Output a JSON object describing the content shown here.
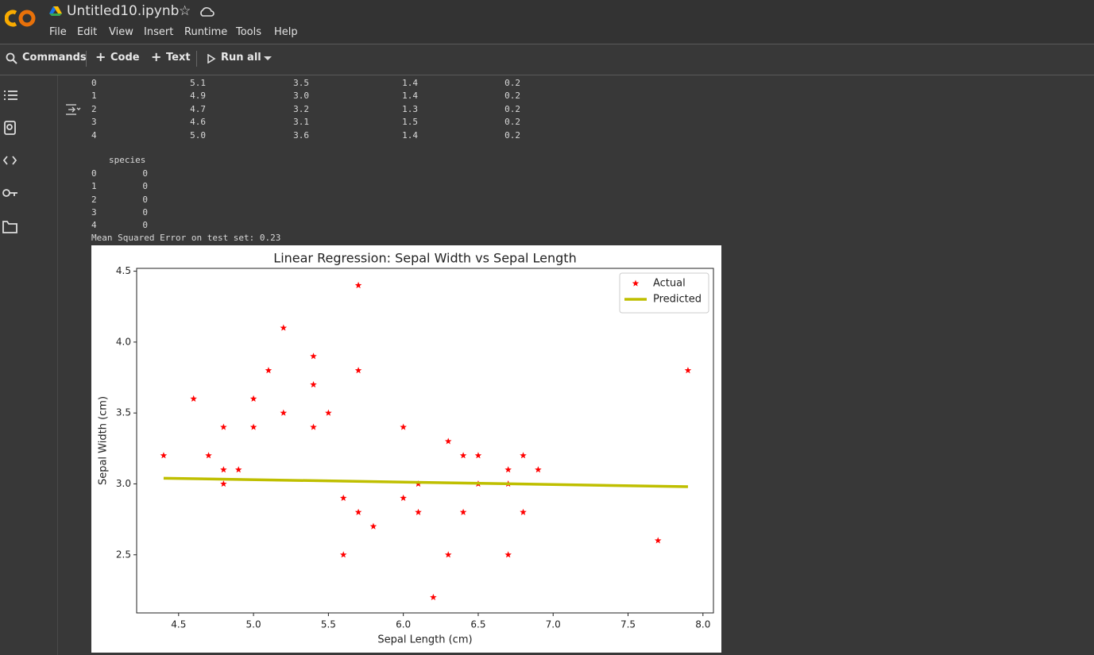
{
  "header": {
    "file_name": "Untitled10.ipynb",
    "menu": [
      "File",
      "Edit",
      "View",
      "Insert",
      "Runtime",
      "Tools",
      "Help"
    ]
  },
  "toolbar": {
    "commands": "Commands",
    "code": "Code",
    "text": "Text",
    "run_all": "Run all"
  },
  "output": {
    "table1_rows": [
      [
        "0",
        "5.1",
        "3.5",
        "1.4",
        "0.2"
      ],
      [
        "1",
        "4.9",
        "3.0",
        "1.4",
        "0.2"
      ],
      [
        "2",
        "4.7",
        "3.2",
        "1.3",
        "0.2"
      ],
      [
        "3",
        "4.6",
        "3.1",
        "1.5",
        "0.2"
      ],
      [
        "4",
        "5.0",
        "3.6",
        "1.4",
        "0.2"
      ]
    ],
    "table2_header": "species",
    "table2_rows": [
      [
        "0",
        "0"
      ],
      [
        "1",
        "0"
      ],
      [
        "2",
        "0"
      ],
      [
        "3",
        "0"
      ],
      [
        "4",
        "0"
      ]
    ],
    "mse_line": "Mean Squared Error on test set: 0.23"
  },
  "chart_data": {
    "type": "scatter",
    "title": "Linear Regression: Sepal Width vs Sepal Length",
    "x_label": "Sepal Length (cm)",
    "y_label": "Sepal Width (cm)",
    "series": [
      {
        "name": "Actual",
        "type": "scatter",
        "color": "#ff0000",
        "x": [
          4.4,
          4.6,
          4.7,
          4.8,
          4.8,
          4.8,
          4.9,
          5.0,
          5.0,
          5.1,
          5.2,
          5.2,
          5.4,
          5.4,
          5.4,
          5.5,
          5.6,
          5.6,
          5.7,
          5.7,
          5.7,
          5.8,
          6.0,
          6.0,
          6.1,
          6.1,
          6.2,
          6.3,
          6.3,
          6.4,
          6.4,
          6.5,
          6.5,
          6.7,
          6.7,
          6.7,
          6.8,
          6.8,
          6.9,
          7.7,
          7.9
        ],
        "values": [
          3.2,
          3.6,
          3.2,
          3.4,
          3.1,
          3.0,
          3.1,
          3.6,
          3.4,
          3.8,
          4.1,
          3.5,
          3.9,
          3.7,
          3.4,
          3.5,
          2.9,
          2.5,
          4.4,
          3.8,
          2.8,
          2.7,
          3.4,
          2.9,
          3.0,
          2.8,
          2.2,
          3.3,
          2.5,
          3.2,
          2.8,
          3.2,
          3.0,
          3.1,
          3.0,
          2.5,
          3.2,
          2.8,
          3.1,
          2.6,
          3.8
        ]
      },
      {
        "name": "Predicted",
        "type": "line",
        "color": "#bfbf00",
        "x": [
          4.4,
          7.9
        ],
        "values": [
          3.04,
          2.98
        ]
      }
    ],
    "xlim": [
      4.22,
      8.07
    ],
    "ylim": [
      2.09,
      4.52
    ],
    "xticks": [
      4.5,
      {
        "value": 5,
        "label": "5.0"
      },
      5.5,
      {
        "value": 6,
        "label": "6.0"
      },
      6.5,
      {
        "value": 7,
        "label": "7.0"
      },
      7.5,
      {
        "value": 8,
        "label": "8.0"
      }
    ],
    "yticks": [
      2.5,
      {
        "value": 3,
        "label": "3.0"
      },
      3.5,
      {
        "value": 4,
        "label": "4.0"
      },
      4.5
    ],
    "legend": "upper right",
    "grid": false
  }
}
